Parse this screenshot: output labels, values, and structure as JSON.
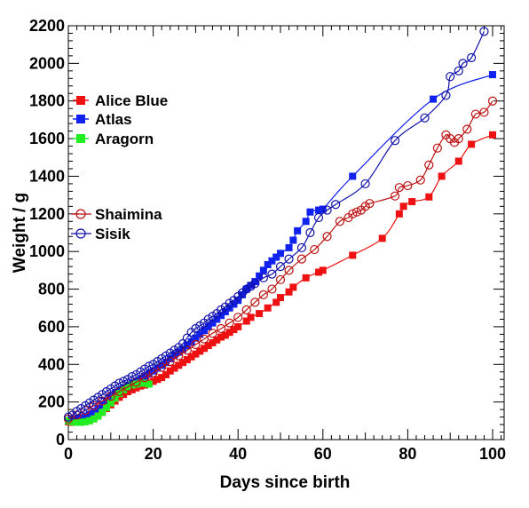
{
  "chart_data": {
    "type": "scatter",
    "xlabel": "Days since birth",
    "ylabel": "Weight / g",
    "xlim": [
      0,
      102
    ],
    "ylim": [
      0,
      2200
    ],
    "xticks": [
      0,
      20,
      40,
      60,
      80,
      100
    ],
    "yticks": [
      0,
      200,
      400,
      600,
      800,
      1000,
      1200,
      1400,
      1600,
      1800,
      2000,
      2200
    ],
    "grid": false,
    "legend_placement": "left",
    "series": [
      {
        "name": "Alice Blue",
        "color": "#ee1111",
        "marker": "filled-square",
        "line": true,
        "x": [
          0,
          1,
          2,
          3,
          4,
          5,
          6,
          7,
          8,
          9,
          10,
          11,
          12,
          13,
          14,
          15,
          16,
          17,
          18,
          19,
          20,
          21,
          22,
          23,
          24,
          25,
          26,
          27,
          28,
          29,
          30,
          31,
          32,
          33,
          34,
          35,
          36,
          37,
          38,
          39,
          40,
          42,
          43,
          45,
          47,
          49,
          50,
          52,
          53,
          56,
          59,
          60,
          67,
          74,
          78,
          79,
          81,
          85,
          88,
          92,
          95,
          100
        ],
        "y": [
          95,
          92,
          95,
          98,
          100,
          105,
          115,
          130,
          145,
          165,
          185,
          205,
          225,
          240,
          255,
          265,
          275,
          285,
          290,
          300,
          310,
          320,
          330,
          345,
          365,
          380,
          395,
          410,
          425,
          440,
          455,
          470,
          485,
          500,
          515,
          530,
          545,
          555,
          570,
          585,
          600,
          630,
          650,
          670,
          700,
          730,
          755,
          785,
          810,
          860,
          890,
          900,
          980,
          1070,
          1200,
          1240,
          1265,
          1290,
          1400,
          1480,
          1570,
          1620
        ]
      },
      {
        "name": "Atlas",
        "color": "#1122ee",
        "marker": "filled-square",
        "line": true,
        "x": [
          0,
          1,
          2,
          3,
          4,
          5,
          6,
          7,
          8,
          9,
          10,
          11,
          12,
          13,
          14,
          15,
          16,
          17,
          18,
          19,
          20,
          21,
          22,
          23,
          24,
          25,
          26,
          27,
          28,
          29,
          30,
          31,
          32,
          33,
          34,
          35,
          36,
          37,
          38,
          39,
          40,
          41,
          42,
          43,
          44,
          45,
          46,
          47,
          48,
          49,
          50,
          52,
          53,
          54,
          56,
          57,
          59,
          60,
          67,
          86,
          100
        ],
        "y": [
          100,
          105,
          110,
          115,
          125,
          135,
          150,
          165,
          185,
          205,
          225,
          245,
          260,
          275,
          290,
          300,
          310,
          320,
          335,
          350,
          365,
          380,
          395,
          410,
          430,
          450,
          465,
          480,
          500,
          520,
          540,
          560,
          580,
          600,
          620,
          640,
          660,
          680,
          700,
          720,
          740,
          770,
          800,
          820,
          840,
          870,
          900,
          930,
          950,
          970,
          990,
          1020,
          1060,
          1110,
          1160,
          1210,
          1220,
          1225,
          1400,
          1810,
          1940
        ]
      },
      {
        "name": "Aragorn",
        "color": "#22ee22",
        "marker": "filled-square",
        "line": true,
        "x": [
          0,
          1,
          2,
          3,
          4,
          5,
          6,
          7,
          8,
          9,
          10,
          11,
          12,
          13,
          14,
          15,
          16,
          17,
          18,
          19
        ],
        "y": [
          100,
          95,
          92,
          92,
          95,
          100,
          110,
          125,
          145,
          170,
          195,
          220,
          245,
          265,
          280,
          290,
          295,
          300,
          300,
          295
        ]
      },
      {
        "name": "Shaimina",
        "color": "#bb1111",
        "marker": "open-circle",
        "line": true,
        "x": [
          0,
          2,
          4,
          6,
          8,
          10,
          12,
          14,
          16,
          18,
          20,
          22,
          24,
          26,
          28,
          30,
          32,
          34,
          36,
          38,
          40,
          42,
          44,
          46,
          48,
          50,
          52,
          55,
          58,
          61,
          64,
          66,
          67,
          68,
          69,
          70,
          71,
          77,
          78,
          80,
          83,
          85,
          87,
          89,
          90,
          91,
          92,
          94,
          96,
          98,
          100
        ],
        "y": [
          110,
          130,
          155,
          180,
          205,
          230,
          255,
          280,
          305,
          330,
          355,
          385,
          415,
          445,
          475,
          505,
          535,
          565,
          590,
          620,
          650,
          690,
          730,
          770,
          800,
          850,
          900,
          960,
          1010,
          1080,
          1160,
          1180,
          1200,
          1210,
          1220,
          1240,
          1255,
          1295,
          1340,
          1350,
          1380,
          1460,
          1550,
          1620,
          1600,
          1580,
          1600,
          1650,
          1730,
          1740,
          1800
        ]
      },
      {
        "name": "Sisik",
        "color": "#1111aa",
        "marker": "open-circle",
        "line": true,
        "x": [
          0,
          1,
          2,
          3,
          4,
          5,
          6,
          7,
          8,
          9,
          10,
          11,
          12,
          13,
          14,
          15,
          16,
          17,
          18,
          19,
          20,
          21,
          22,
          23,
          24,
          25,
          26,
          27,
          28,
          29,
          30,
          31,
          32,
          33,
          34,
          35,
          36,
          37,
          38,
          39,
          40,
          41,
          42,
          43,
          44,
          46,
          48,
          50,
          52,
          55,
          57,
          59,
          61,
          63,
          70,
          77,
          84,
          89,
          90,
          92,
          93,
          95,
          98
        ],
        "y": [
          120,
          130,
          150,
          165,
          180,
          195,
          210,
          225,
          240,
          255,
          270,
          285,
          300,
          310,
          320,
          335,
          345,
          360,
          375,
          390,
          400,
          415,
          430,
          445,
          460,
          475,
          490,
          510,
          540,
          570,
          590,
          605,
          620,
          640,
          655,
          670,
          690,
          705,
          725,
          740,
          760,
          780,
          800,
          815,
          830,
          860,
          880,
          920,
          960,
          1020,
          1100,
          1180,
          1220,
          1250,
          1360,
          1590,
          1710,
          1830,
          1930,
          1960,
          2000,
          2030,
          2170
        ]
      }
    ]
  }
}
